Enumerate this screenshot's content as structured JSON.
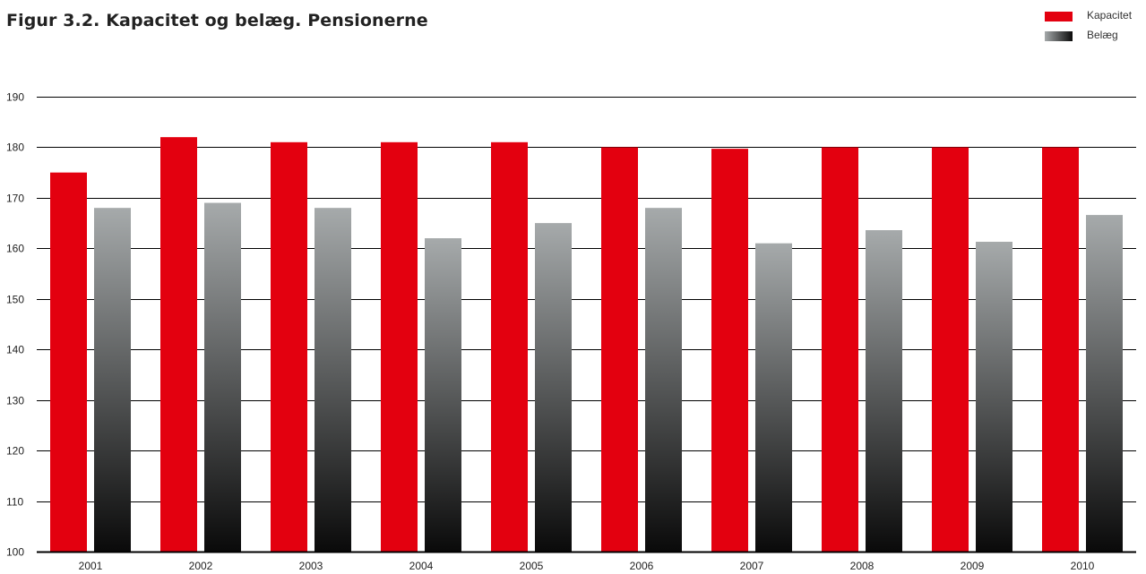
{
  "colors": {
    "kapacitet": "#e3000f",
    "belaeg_top": "#a6aaab",
    "belaeg_bottom": "#0a0a0a",
    "grid": "#000000",
    "text": "#222222"
  },
  "chart_data": {
    "type": "bar",
    "title": "Figur 3.2. Kapacitet og belæg. Pensionerne",
    "xlabel": "",
    "ylabel": "",
    "categories": [
      "2001",
      "2002",
      "2003",
      "2004",
      "2005",
      "2006",
      "2007",
      "2008",
      "2009",
      "2010"
    ],
    "series": [
      {
        "name": "Kapacitet",
        "values": [
          175,
          182,
          181,
          181,
          181,
          180,
          179.7,
          180,
          180,
          180
        ]
      },
      {
        "name": "Belæg",
        "values": [
          168,
          169,
          168,
          162,
          165,
          168,
          161,
          163.6,
          161.3,
          166.6
        ]
      }
    ],
    "ylim": [
      100,
      190
    ],
    "yticks": [
      100,
      110,
      120,
      130,
      140,
      150,
      160,
      170,
      180,
      190
    ],
    "grid": true,
    "legend_position": "top-right"
  }
}
